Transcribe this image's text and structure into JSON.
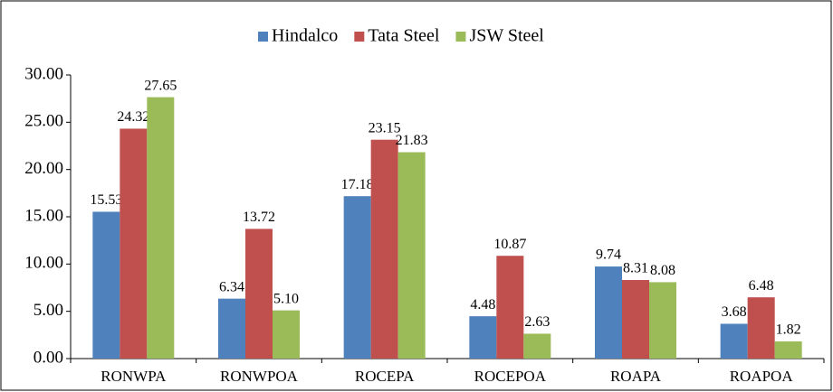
{
  "chart_data": {
    "type": "bar",
    "categories": [
      "RONWPA",
      "RONWPOA",
      "ROCEPA",
      "ROCEPOA",
      "ROAPA",
      "ROAPOA"
    ],
    "series": [
      {
        "name": "Hindalco",
        "color": "#4f81bd",
        "values": [
          15.53,
          6.34,
          17.18,
          4.48,
          9.74,
          3.68
        ],
        "value_labels": [
          "15.53",
          "6.34",
          "17.18",
          "4.48",
          "9.74",
          "3.68"
        ]
      },
      {
        "name": "Tata Steel",
        "color": "#c0504d",
        "values": [
          24.32,
          13.72,
          23.15,
          10.87,
          8.31,
          6.48
        ],
        "value_labels": [
          "24.32",
          "13.72",
          "23.15",
          "10.87",
          "8.31",
          "6.48"
        ]
      },
      {
        "name": "JSW Steel",
        "color": "#9bbb59",
        "values": [
          27.65,
          5.1,
          21.83,
          2.63,
          8.08,
          1.82
        ],
        "value_labels": [
          "27.65",
          "5.10",
          "21.83",
          "2.63",
          "8.08",
          "1.82"
        ]
      }
    ],
    "ylim": [
      0,
      30
    ],
    "yticks": [
      {
        "value": 0,
        "label": "0.00"
      },
      {
        "value": 5,
        "label": "5.00"
      },
      {
        "value": 10,
        "label": "10.00"
      },
      {
        "value": 15,
        "label": "15.00"
      },
      {
        "value": 20,
        "label": "20.00"
      },
      {
        "value": 25,
        "label": "25.00"
      },
      {
        "value": 30,
        "label": "30.00"
      }
    ],
    "legend": "top"
  }
}
